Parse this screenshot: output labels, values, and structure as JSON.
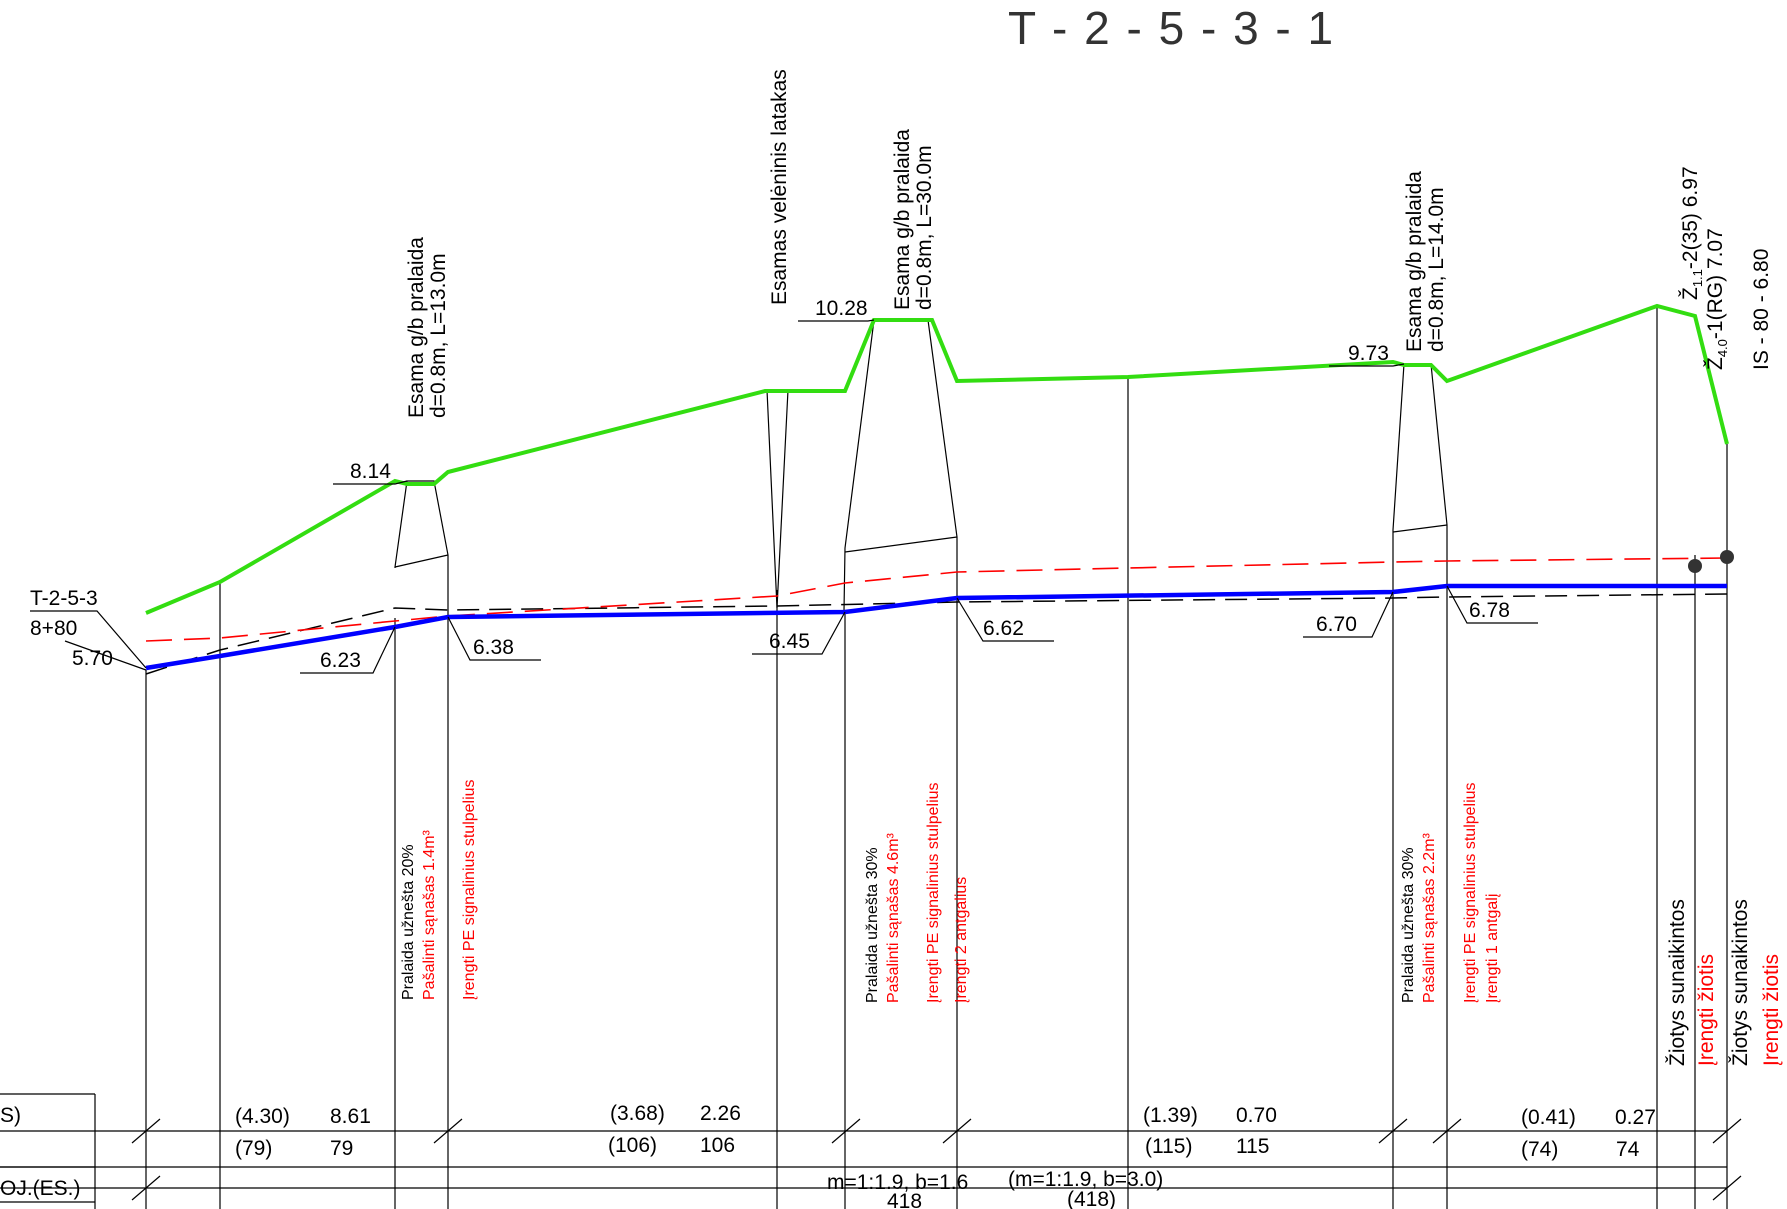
{
  "title": "T - 2 - 5 - 3 - 1",
  "start": {
    "code": "T-2-5-3",
    "chainage": "8+80",
    "elev": "5.70"
  },
  "bottom_elevations": [
    "6.23",
    "6.38",
    "6.45",
    "6.62",
    "6.70",
    "6.78"
  ],
  "top_elevations": [
    "8.14",
    "10.28",
    "9.73"
  ],
  "culvert_labels": [
    {
      "line1": "Esama g/b pralaida",
      "line2": "d=0.8m, L=13.0m"
    },
    {
      "line1": "Esama g/b pralaida",
      "line2": "d=0.8m, L=30.0m"
    },
    {
      "line1": "Esama g/b pralaida",
      "line2": "d=0.8m, L=14.0m"
    }
  ],
  "veleninis": "Esamas velėninis latakas",
  "mouth_labels": {
    "z1": "Ž",
    "z1_sub": "1.1",
    "z1_rest": "-2(35)  6.97",
    "z2": "Ž",
    "z2_sub": "4.0",
    "z2_rest": "-1(RG)  7.07",
    "is": "IS - 80 - 6.80"
  },
  "notes": [
    {
      "black": "Pralaida užnešta 20%",
      "red": [
        "Pašalinti sąnašas 1.4m³",
        "Įrengti PE signalinius stulpelius"
      ]
    },
    {
      "black": "Pralaida užnešta 30%",
      "red": [
        "Pašalinti sąnašas 4.6m³",
        "Įrengti PE signalinius stulpelius",
        "Įrengti 2 antgalius"
      ]
    },
    {
      "black": "Pralaida užnešta 30%",
      "red": [
        "Pašalinti sąnašas 2.2m³",
        "Įrengti PE signalinius stulpelius",
        "Įrengti 1 antgalį"
      ]
    }
  ],
  "mouths": [
    {
      "black": "Žiotys sunaikintos",
      "red": "Įrengti žiotis"
    },
    {
      "black": "Žiotys sunaikintos",
      "red": "Įrengti žiotis"
    }
  ],
  "table": {
    "row1_label": "S)",
    "row3_label": "OJ.(ES.)",
    "row1": [
      {
        "a": "(4.30)",
        "b": "8.61"
      },
      {
        "a": "(3.68)",
        "b": "2.26"
      },
      {
        "a": "(1.39)",
        "b": "0.70"
      },
      {
        "a": "(0.41)",
        "b": "0.27"
      }
    ],
    "row2": [
      {
        "a": "(79)",
        "b": "79"
      },
      {
        "a": "(106)",
        "b": "106"
      },
      {
        "a": "(115)",
        "b": "115"
      },
      {
        "a": "(74)",
        "b": "74"
      }
    ],
    "row3_a": "m=1:1.9, b=1.6",
    "row3_b": "(m=1:1.9, b=3.0)",
    "row4_a": "418",
    "row4_b": "(418)"
  },
  "colors": {
    "ground": "#33dd11",
    "design": "#0000ff",
    "red": "#ff0000"
  }
}
